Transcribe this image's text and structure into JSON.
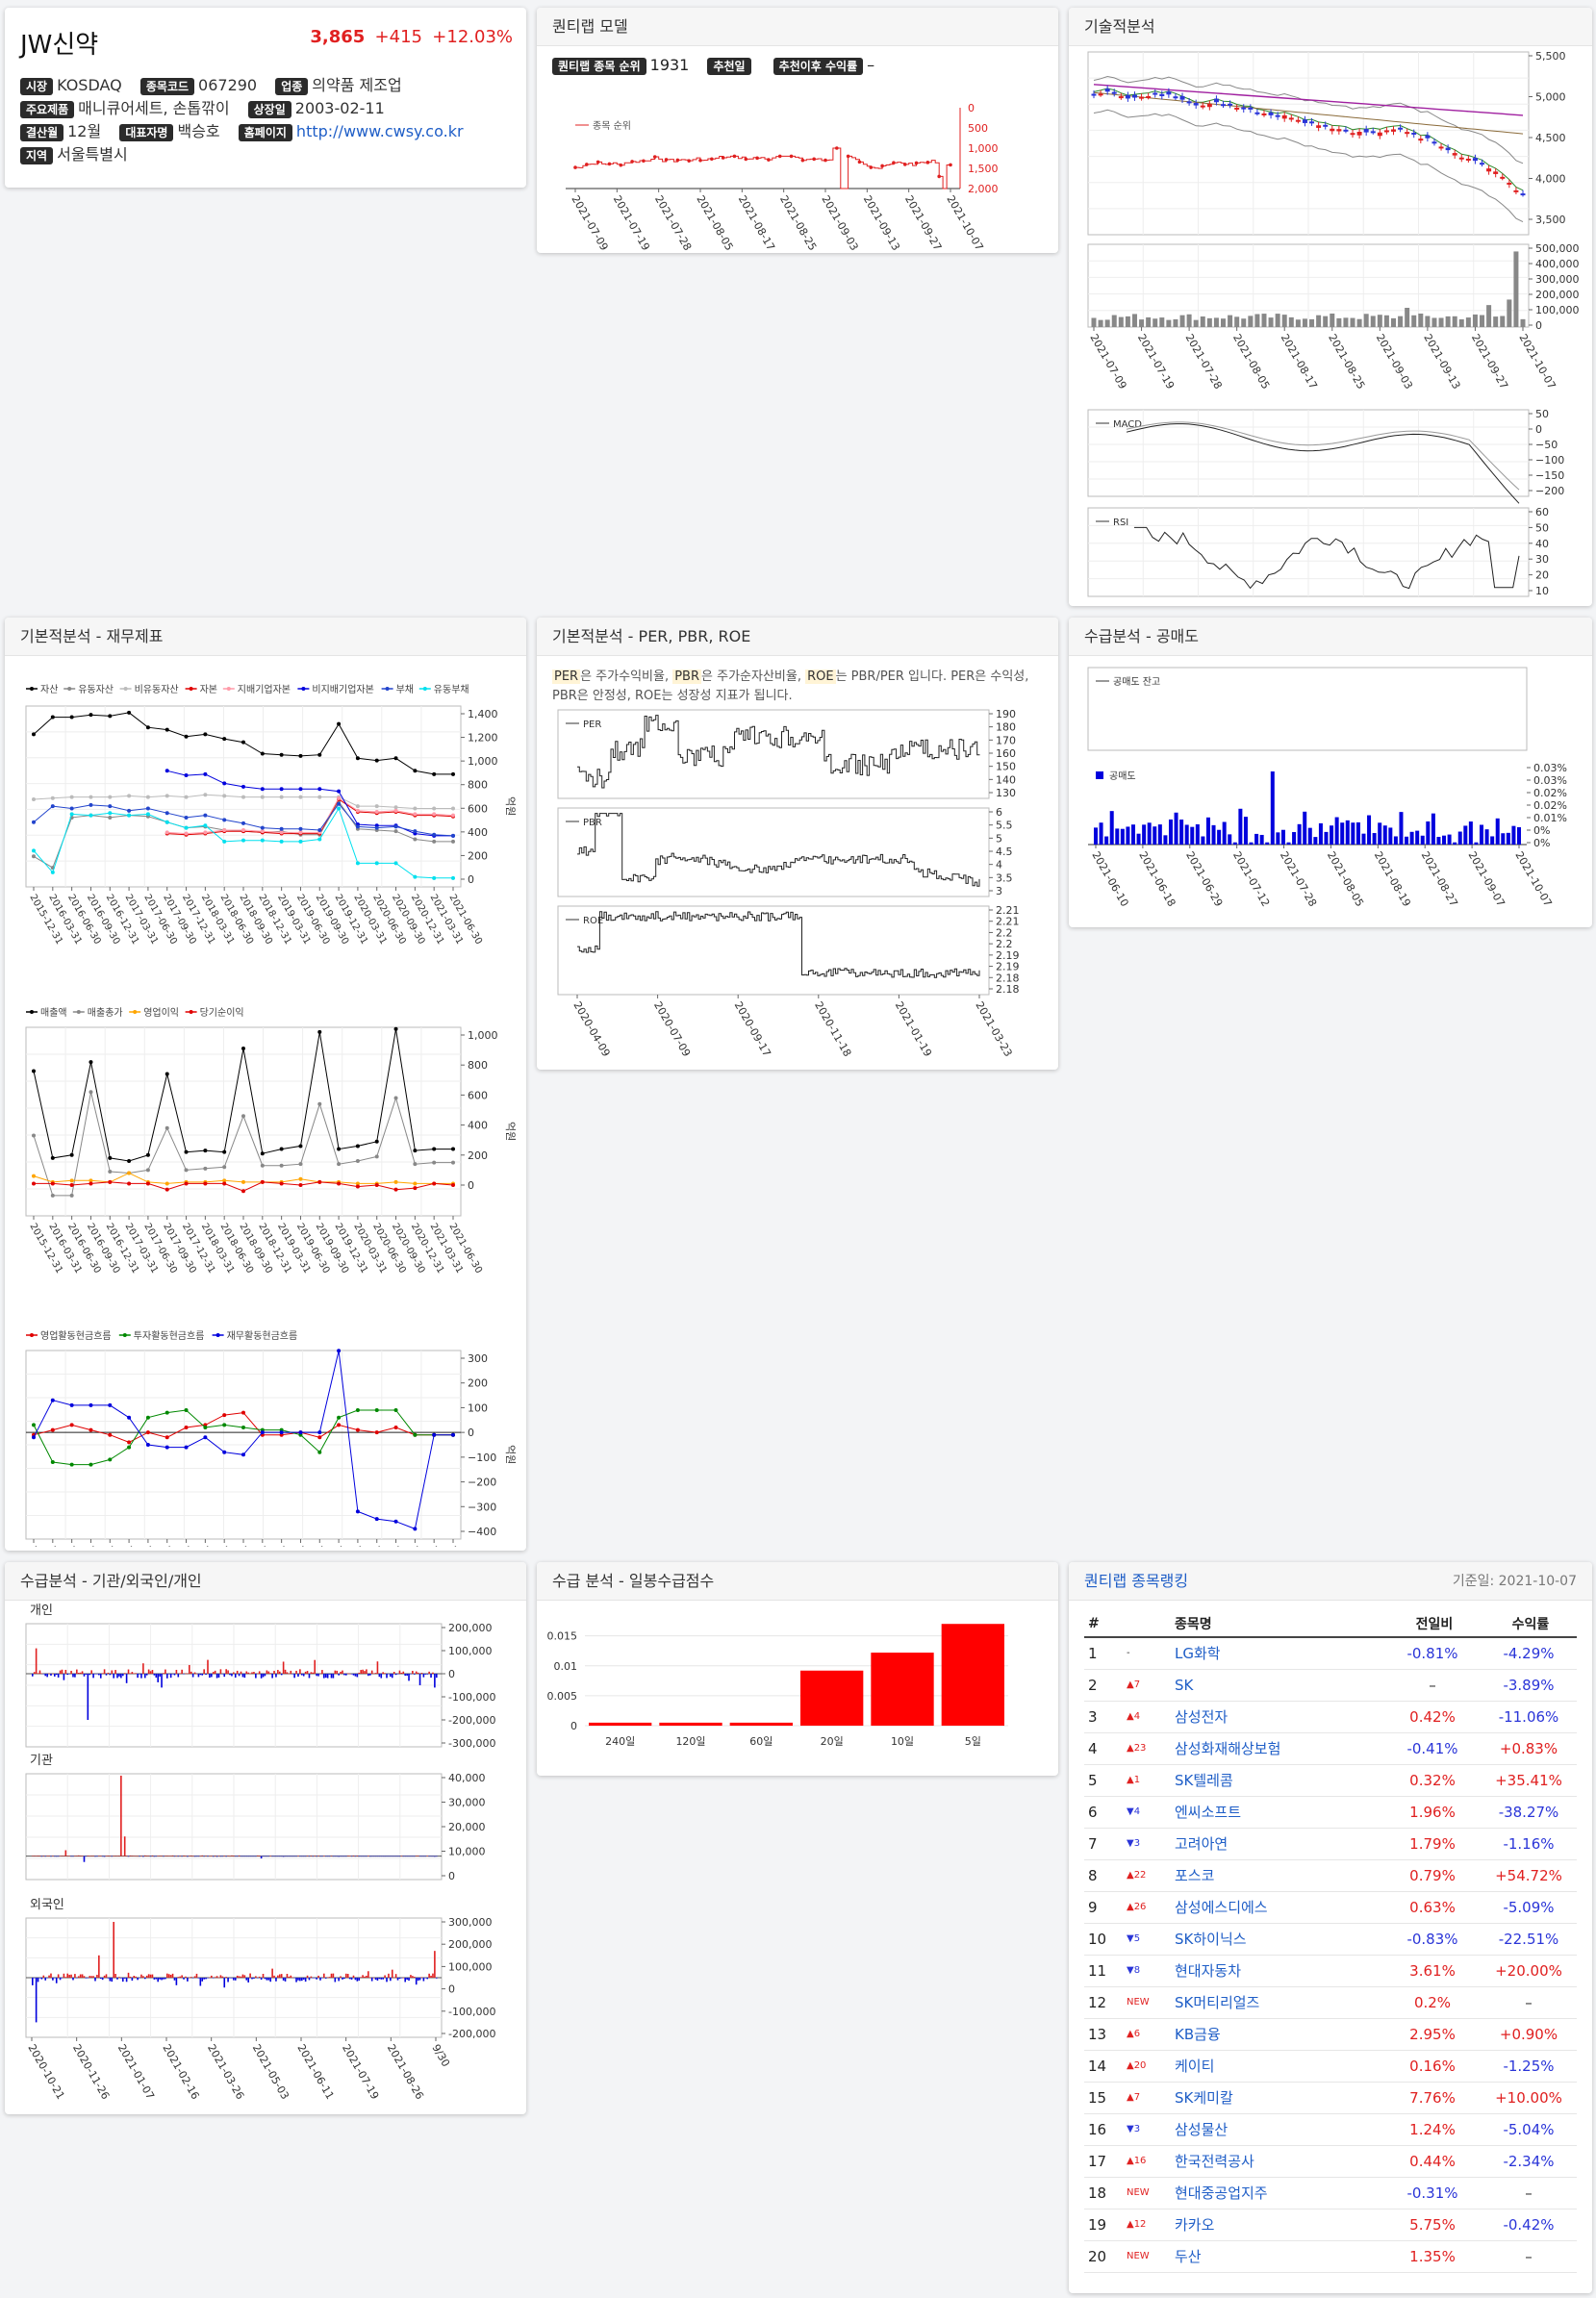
{
  "stock": {
    "name": "JW신약",
    "price": "3,865",
    "change": "+415",
    "change_pct": "+12.03%",
    "market_label": "시장",
    "market": "KOSDAQ",
    "code_label": "종목코드",
    "code": "067290",
    "industry_label": "업종",
    "industry": "의약품 제조업",
    "products_label": "주요제품",
    "products": "매니큐어세트, 손톱깎이",
    "listing_label": "상장일",
    "listing_date": "2003-02-11",
    "fiscal_label": "결산월",
    "fiscal_month": "12월",
    "ceo_label": "대표자명",
    "ceo": "백승호",
    "homepage_label": "홈페이지",
    "homepage": "http://www.cwsy.co.kr",
    "region_label": "지역",
    "region": "서울특별시"
  },
  "quant": {
    "title": "퀀티랩 모델",
    "rank_label": "퀀티랩 종목 순위",
    "rank": "1931",
    "rec_date_label": "추천일",
    "return_label": "추천이후 수익률",
    "return_value": "–",
    "legend": "종목 순위",
    "x_ticks": [
      "2021-07-09",
      "2021-07-19",
      "2021-07-28",
      "2021-08-05",
      "2021-08-17",
      "2021-08-25",
      "2021-09-03",
      "2021-09-13",
      "2021-09-27",
      "2021-10-07"
    ],
    "y_ticks": [
      "0",
      "500",
      "1,000",
      "1,500",
      "2,000"
    ]
  },
  "tech": {
    "title": "기술적분석",
    "price_ticks": [
      "5,500",
      "5,000",
      "4,500",
      "4,000",
      "3,500"
    ],
    "vol_ticks": [
      "500,000",
      "400,000",
      "300,000",
      "200,000",
      "100,000",
      "0"
    ],
    "x_ticks": [
      "2021-07-09",
      "2021-07-19",
      "2021-07-28",
      "2021-08-05",
      "2021-08-17",
      "2021-08-25",
      "2021-09-03",
      "2021-09-13",
      "2021-09-27",
      "2021-10-07"
    ],
    "macd_label": "MACD",
    "macd_ticks": [
      "50",
      "0",
      "−50",
      "−100",
      "−150",
      "−200"
    ],
    "rsi_label": "RSI",
    "rsi_ticks": [
      "60",
      "50",
      "40",
      "30",
      "20",
      "10"
    ]
  },
  "fin": {
    "title": "기본적분석 - 재무제표",
    "legend1": [
      "자산",
      "유동자산",
      "비유동자산",
      "자본",
      "지배기업자본",
      "비지배기업자본",
      "부채",
      "유동부채"
    ],
    "legend1_colors": [
      "#000000",
      "#888888",
      "#bbbbbb",
      "#e00000",
      "#ff9aa8",
      "#0000dd",
      "#2244cc",
      "#00e0ee"
    ],
    "y1_ticks": [
      "1,400",
      "1,200",
      "1,000",
      "800",
      "600",
      "400",
      "200",
      "0"
    ],
    "legend2": [
      "매출액",
      "매출총가",
      "영업이익",
      "당기순이익"
    ],
    "legend2_colors": [
      "#000000",
      "#888888",
      "#ffa500",
      "#e00000"
    ],
    "y2_ticks": [
      "1,000",
      "800",
      "600",
      "400",
      "200",
      "0"
    ],
    "legend3": [
      "영업활동현금흐름",
      "투자활동현금흐름",
      "재무활동현금흐름"
    ],
    "legend3_colors": [
      "#e00000",
      "#008800",
      "#0000dd"
    ],
    "y3_ticks": [
      "300",
      "200",
      "100",
      "0",
      "−100",
      "−200",
      "−300",
      "−400"
    ],
    "unit": "억원",
    "x_ticks": [
      "2015-12-31",
      "2016-03-31",
      "2016-06-30",
      "2016-09-30",
      "2016-12-31",
      "2017-03-31",
      "2017-06-30",
      "2017-09-30",
      "2017-12-31",
      "2018-03-31",
      "2018-06-30",
      "2018-09-30",
      "2018-12-31",
      "2019-03-31",
      "2019-06-30",
      "2019-09-30",
      "2019-12-31",
      "2020-03-31",
      "2020-06-30",
      "2020-09-30",
      "2020-12-31",
      "2021-03-31",
      "2021-06-30"
    ]
  },
  "ratio": {
    "title": "기본적분석 - PER, PBR, ROE",
    "desc": [
      {
        "t": "PER",
        "hl": true
      },
      {
        "t": "은 주가수익비율, ",
        "hl": false
      },
      {
        "t": "PBR",
        "hl": true
      },
      {
        "t": "은 주가순자산비율, ",
        "hl": false
      },
      {
        "t": "ROE",
        "hl": true
      },
      {
        "t": "는 PBR/PER 입니다. PER은 수익성, PBR은 안정성, ROE는 성장성 지표가 됩니다.",
        "hl": false
      }
    ],
    "per_label": "PER",
    "per_ticks": [
      "190",
      "180",
      "170",
      "160",
      "150",
      "140",
      "130"
    ],
    "pbr_label": "PBR",
    "pbr_ticks": [
      "6",
      "5.5",
      "5",
      "4.5",
      "4",
      "3.5",
      "3"
    ],
    "roe_label": "ROE",
    "roe_ticks": [
      "2.21",
      "2.21",
      "2.2",
      "2.2",
      "2.19",
      "2.19",
      "2.18",
      "2.18"
    ],
    "x_ticks": [
      "2020-04-09",
      "2020-07-09",
      "2020-09-17",
      "2020-11-18",
      "2021-01-19",
      "2021-03-23"
    ]
  },
  "short": {
    "title": "수급분석 - 공매도",
    "balance_label": "공매도 잔고",
    "vol_label": "공매도",
    "y_ticks": [
      "0.03%",
      "0.03%",
      "0.02%",
      "0.02%",
      "0.01%",
      "0%",
      "0%"
    ],
    "x_ticks": [
      "2021-06-10",
      "2021-06-18",
      "2021-06-29",
      "2021-07-12",
      "2021-07-28",
      "2021-08-05",
      "2021-08-19",
      "2021-08-27",
      "2021-09-07",
      "2021-10-07"
    ]
  },
  "supply": {
    "title": "수급분석 - 기관/외국인/개인",
    "indiv_label": "개인",
    "indiv_ticks": [
      "200,000",
      "100,000",
      "0",
      "-100,000",
      "-200,000",
      "-300,000"
    ],
    "inst_label": "기관",
    "inst_ticks": [
      "40,000",
      "30,000",
      "20,000",
      "10,000",
      "0"
    ],
    "foreign_label": "외국인",
    "foreign_ticks": [
      "300,000",
      "200,000",
      "100,000",
      "0",
      "-100,000",
      "-200,000"
    ],
    "x_ticks": [
      "2020-10-21",
      "2020-11-26",
      "2021-01-07",
      "2021-02-16",
      "2021-03-26",
      "2021-05-03",
      "2021-06-11",
      "2021-07-19",
      "2021-08-26",
      "9/30"
    ]
  },
  "score": {
    "title": "수급 분석 - 일봉수급점수",
    "y_ticks": [
      "0.015",
      "0.01",
      "0.005",
      "0"
    ],
    "chart_data": {
      "type": "bar",
      "categories": [
        "240일",
        "120일",
        "60일",
        "20일",
        "10일",
        "5일"
      ],
      "values": [
        0.0005,
        0.0005,
        0.0005,
        0.0092,
        0.0122,
        0.017
      ],
      "ylim": [
        0,
        0.018
      ]
    }
  },
  "ranking": {
    "title": "퀀티랩 종목랭킹",
    "date_label": "기준일: 2021-10-07",
    "headers": [
      "#",
      "",
      "종목명",
      "전일비",
      "수익률"
    ],
    "rows": [
      {
        "rank": "1",
        "chg": "-",
        "dir": "none",
        "name": "LG화학",
        "prev": "-0.81%",
        "ret": "-4.29%"
      },
      {
        "rank": "2",
        "chg": "▲7",
        "dir": "up",
        "name": "SK",
        "prev": "–",
        "ret": "-3.89%"
      },
      {
        "rank": "3",
        "chg": "▲4",
        "dir": "up",
        "name": "삼성전자",
        "prev": "0.42%",
        "ret": "-11.06%"
      },
      {
        "rank": "4",
        "chg": "▲23",
        "dir": "up",
        "name": "삼성화재해상보험",
        "prev": "-0.41%",
        "ret": "+0.83%"
      },
      {
        "rank": "5",
        "chg": "▲1",
        "dir": "up",
        "name": "SK텔레콤",
        "prev": "0.32%",
        "ret": "+35.41%"
      },
      {
        "rank": "6",
        "chg": "▼4",
        "dir": "down",
        "name": "엔씨소프트",
        "prev": "1.96%",
        "ret": "-38.27%"
      },
      {
        "rank": "7",
        "chg": "▼3",
        "dir": "down",
        "name": "고려아연",
        "prev": "1.79%",
        "ret": "-1.16%"
      },
      {
        "rank": "8",
        "chg": "▲22",
        "dir": "up",
        "name": "포스코",
        "prev": "0.79%",
        "ret": "+54.72%"
      },
      {
        "rank": "9",
        "chg": "▲26",
        "dir": "up",
        "name": "삼성에스디에스",
        "prev": "0.63%",
        "ret": "-5.09%"
      },
      {
        "rank": "10",
        "chg": "▼5",
        "dir": "down",
        "name": "SK하이닉스",
        "prev": "-0.83%",
        "ret": "-22.51%"
      },
      {
        "rank": "11",
        "chg": "▼8",
        "dir": "down",
        "name": "현대자동차",
        "prev": "3.61%",
        "ret": "+20.00%"
      },
      {
        "rank": "12",
        "chg": "NEW",
        "dir": "new",
        "name": "SK머티리얼즈",
        "prev": "0.2%",
        "ret": "–"
      },
      {
        "rank": "13",
        "chg": "▲6",
        "dir": "up",
        "name": "KB금융",
        "prev": "2.95%",
        "ret": "+0.90%"
      },
      {
        "rank": "14",
        "chg": "▲20",
        "dir": "up",
        "name": "케이티",
        "prev": "0.16%",
        "ret": "-1.25%"
      },
      {
        "rank": "15",
        "chg": "▲7",
        "dir": "up",
        "name": "SK케미칼",
        "prev": "7.76%",
        "ret": "+10.00%"
      },
      {
        "rank": "16",
        "chg": "▼3",
        "dir": "down",
        "name": "삼성물산",
        "prev": "1.24%",
        "ret": "-5.04%"
      },
      {
        "rank": "17",
        "chg": "▲16",
        "dir": "up",
        "name": "한국전력공사",
        "prev": "0.44%",
        "ret": "-2.34%"
      },
      {
        "rank": "18",
        "chg": "NEW",
        "dir": "new",
        "name": "현대중공업지주",
        "prev": "-0.31%",
        "ret": "–"
      },
      {
        "rank": "19",
        "chg": "▲12",
        "dir": "up",
        "name": "카카오",
        "prev": "5.75%",
        "ret": "-0.42%"
      },
      {
        "rank": "20",
        "chg": "NEW",
        "dir": "new",
        "name": "두산",
        "prev": "1.35%",
        "ret": "–"
      }
    ]
  }
}
